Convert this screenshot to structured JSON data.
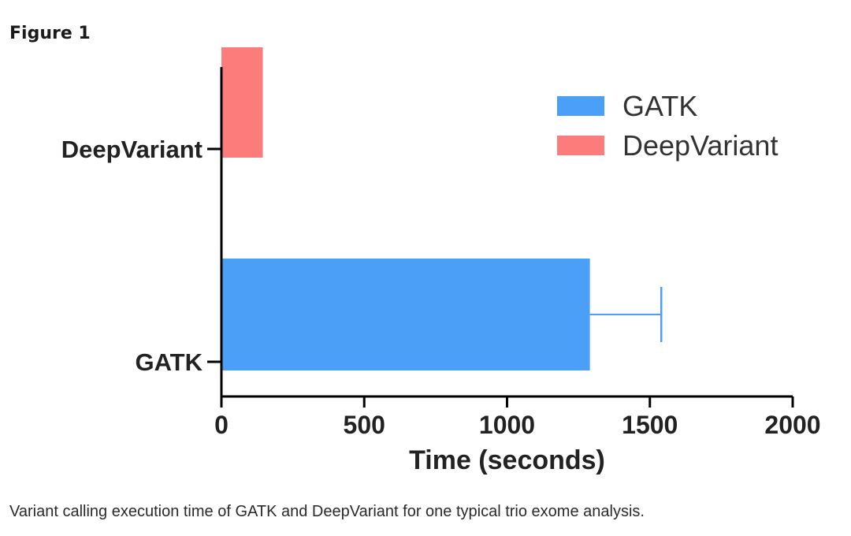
{
  "figure": {
    "heading": "Figure 1",
    "caption": "Variant calling execution time of GATK and DeepVariant for one typical trio exome analysis."
  },
  "chart_data": {
    "type": "bar",
    "orientation": "horizontal",
    "categories": [
      "DeepVariant",
      "GATK"
    ],
    "values": [
      145,
      1290
    ],
    "error_upper": [
      null,
      1540
    ],
    "colors": [
      "#FC7B7B",
      "#4C9FF7"
    ],
    "title": "",
    "xlabel": "Time (seconds)",
    "ylabel": "",
    "xlim": [
      0,
      2000
    ],
    "xticks": [
      0,
      500,
      1000,
      1500,
      2000
    ],
    "legend": {
      "placement": "top-right",
      "entries": [
        {
          "label": "GATK",
          "color": "#4C9FF7"
        },
        {
          "label": "DeepVariant",
          "color": "#FC7B7B"
        }
      ]
    },
    "grid": false
  }
}
